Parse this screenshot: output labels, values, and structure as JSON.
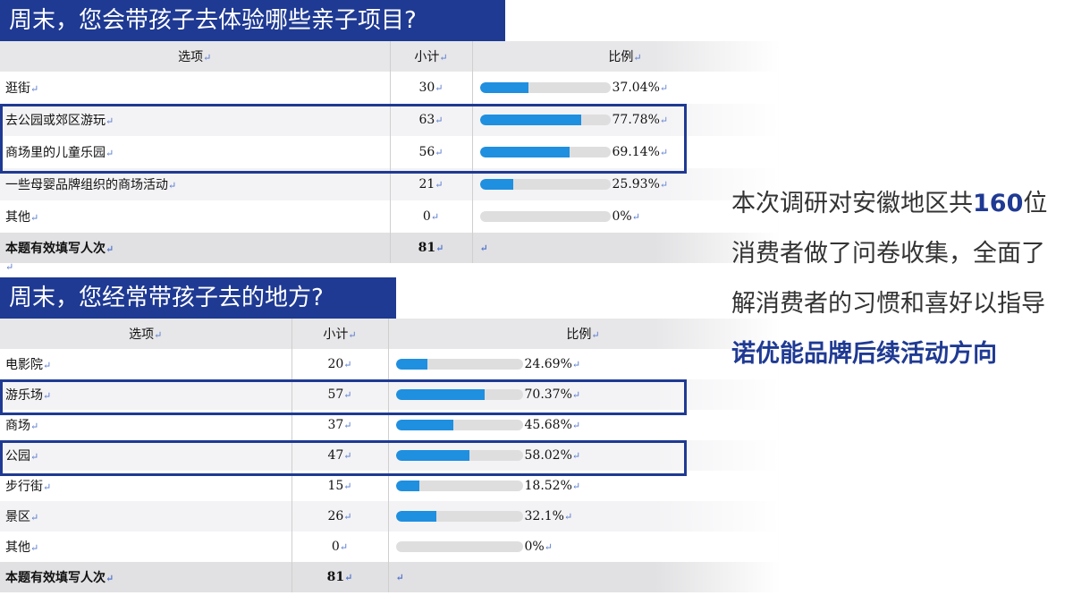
{
  "survey1": {
    "title": "周末，您会带孩子去体验哪些亲子项目?",
    "headers": {
      "option": "选项",
      "count": "小计",
      "ratio": "比例"
    },
    "rows": [
      {
        "option": "逛街",
        "count": "30",
        "pct": "37.04%",
        "value": 37.04
      },
      {
        "option": "去公园或郊区游玩",
        "count": "63",
        "pct": "77.78%",
        "value": 77.78
      },
      {
        "option": "商场里的儿童乐园",
        "count": "56",
        "pct": "69.14%",
        "value": 69.14
      },
      {
        "option": "一些母婴品牌组织的商场活动",
        "count": "21",
        "pct": "25.93%",
        "value": 25.93
      },
      {
        "option": "其他",
        "count": "0",
        "pct": "0%",
        "value": 0
      }
    ],
    "total": {
      "label": "本题有效填写人次",
      "count": "81"
    }
  },
  "survey2": {
    "title": "周末，您经常带孩子去的地方?",
    "headers": {
      "option": "选项",
      "count": "小计",
      "ratio": "比例"
    },
    "rows": [
      {
        "option": "电影院",
        "count": "20",
        "pct": "24.69%",
        "value": 24.69
      },
      {
        "option": "游乐场",
        "count": "57",
        "pct": "70.37%",
        "value": 70.37
      },
      {
        "option": "商场",
        "count": "37",
        "pct": "45.68%",
        "value": 45.68
      },
      {
        "option": "公园",
        "count": "47",
        "pct": "58.02%",
        "value": 58.02
      },
      {
        "option": "步行街",
        "count": "15",
        "pct": "18.52%",
        "value": 18.52
      },
      {
        "option": "景区",
        "count": "26",
        "pct": "32.1%",
        "value": 32.1
      },
      {
        "option": "其他",
        "count": "0",
        "pct": "0%",
        "value": 0
      }
    ],
    "total": {
      "label": "本题有效填写人次",
      "count": "81"
    }
  },
  "summary": {
    "part1": "本次调研对安徽地区共",
    "number": "160",
    "part2": "位消费者做了问卷收集，全面了解消费者的习惯和喜好以指导",
    "highlight": "诺优能品牌后续活动方向"
  },
  "colors": {
    "accent": "#1f3a93",
    "bar": "#1f8fe0",
    "bar_track": "#dedede"
  },
  "return_glyph": "↵"
}
